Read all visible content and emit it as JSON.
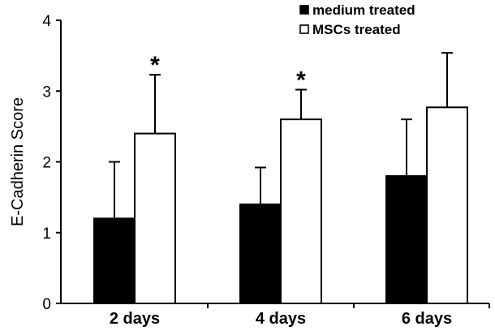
{
  "chart_data": {
    "type": "bar",
    "title": "",
    "xlabel": "",
    "ylabel": "E-Cadherin Score",
    "categories": [
      "2 days",
      "4 days",
      "6 days"
    ],
    "ylim": [
      0,
      4
    ],
    "yticks": [
      "0",
      "1",
      "2",
      "3",
      "4"
    ],
    "grid": false,
    "legend_position": "top-right",
    "series": [
      {
        "name": "medium treated",
        "color": "#000000",
        "values": [
          1.2,
          1.4,
          1.8
        ],
        "error": [
          0.8,
          0.52,
          0.8
        ]
      },
      {
        "name": "MSCs treated",
        "color": "#ffffff",
        "values": [
          2.4,
          2.6,
          2.77
        ],
        "error": [
          0.83,
          0.42,
          0.77
        ]
      }
    ],
    "annotations": [
      {
        "text": "*",
        "category": "2 days",
        "series": "MSCs treated"
      },
      {
        "text": "*",
        "category": "4 days",
        "series": "MSCs treated"
      }
    ]
  }
}
